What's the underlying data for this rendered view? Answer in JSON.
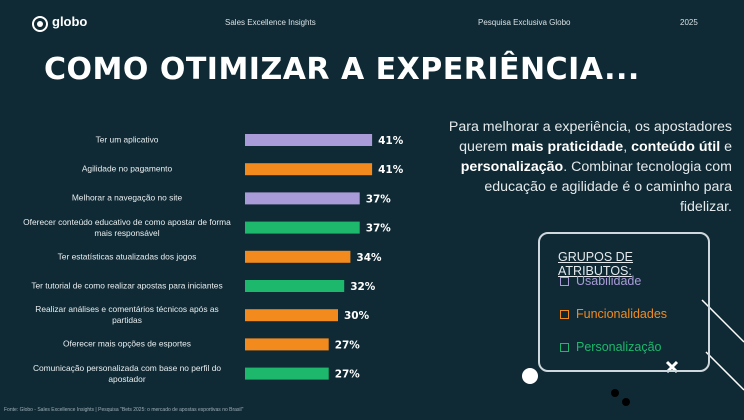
{
  "header": {
    "logo": "globo",
    "report": "Sales Excellence Insights",
    "survey": "Pesquisa Exclusiva Globo",
    "year": "2025"
  },
  "title": "COMO OTIMIZAR A EXPERIÊNCIA...",
  "chart_data": {
    "type": "bar",
    "orientation": "horizontal",
    "categories": [
      "Ter um aplicativo",
      "Agilidade no pagamento",
      "Melhorar a navegação no site",
      "Oferecer conteúdo educativo de como apostar de forma mais responsável",
      "Ter estatísticas atualizadas dos jogos",
      "Ter tutorial de como realizar apostas para iniciantes",
      "Realizar análises e comentários técnicos após as partidas",
      "Oferecer mais opções de esportes",
      "Comunicação personalizada com base no perfil do apostador"
    ],
    "series": [
      {
        "name": "Usabilidade",
        "color": "#a99bd8",
        "values": [
          41,
          null,
          37,
          null,
          null,
          null,
          null,
          null,
          null
        ],
        "value_labels": [
          "41%",
          null,
          "37%",
          null,
          null,
          null,
          null,
          null,
          null
        ]
      },
      {
        "name": "Funcionalidades",
        "color": "#f28a1e",
        "values": [
          null,
          41,
          null,
          null,
          34,
          null,
          30,
          27,
          null
        ],
        "value_labels": [
          null,
          "41%",
          null,
          null,
          "34%",
          null,
          "30%",
          "27%",
          null
        ]
      },
      {
        "name": "Personalização",
        "color": "#1db86b",
        "values": [
          null,
          null,
          null,
          37,
          null,
          32,
          null,
          null,
          27
        ],
        "value_labels": [
          null,
          null,
          null,
          "37%",
          null,
          "32%",
          null,
          null,
          "27%"
        ]
      }
    ],
    "legend_title": "GRUPOS DE ATRIBUTOS:"
  },
  "summary": [
    {
      "text": "Para melhorar a experiência, os apostadores querem ",
      "bold": false
    },
    {
      "text": "mais praticidade",
      "bold": true
    },
    {
      "text": ", ",
      "bold": false
    },
    {
      "text": "conteúdo útil",
      "bold": true
    },
    {
      "text": " e ",
      "bold": false
    },
    {
      "text": "personalização",
      "bold": true
    },
    {
      "text": ". Combinar tecnologia com educação e agilidade é o caminho para fidelizar.",
      "bold": false
    }
  ],
  "footnote": "Fonte: Globo - Sales Excellence Insights | Pesquisa \"Bets 2025: o mercado de apostas esportivas no Brasil\""
}
